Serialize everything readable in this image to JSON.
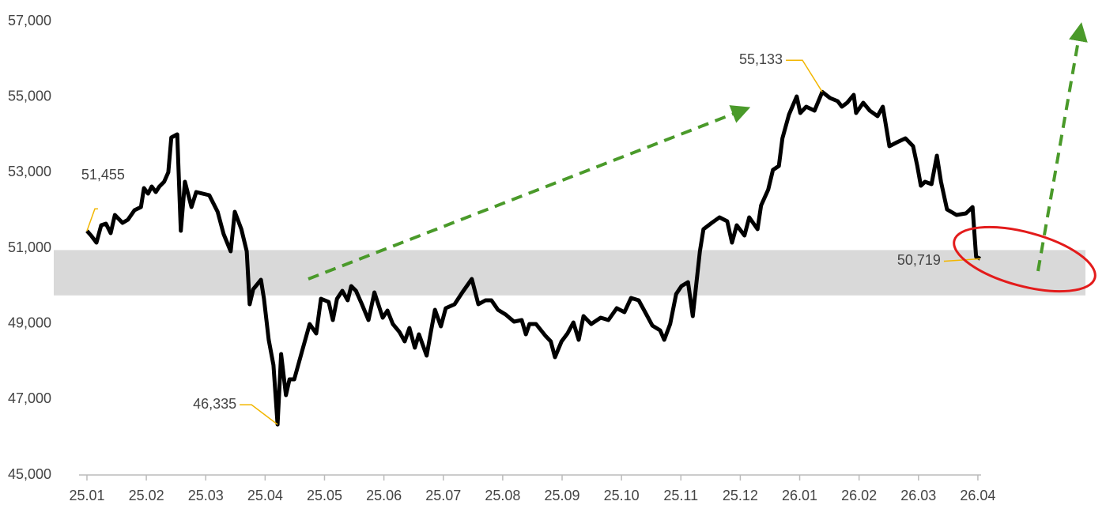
{
  "chart_data": {
    "type": "line",
    "xlim": [
      -0.5,
      17.1
    ],
    "ylim": [
      45000,
      57000
    ],
    "yticks": [
      {
        "value": 45000,
        "label": "45,000"
      },
      {
        "value": 47000,
        "label": "47,000"
      },
      {
        "value": 49000,
        "label": "49,000"
      },
      {
        "value": 51000,
        "label": "51,000"
      },
      {
        "value": 53000,
        "label": "53,000"
      },
      {
        "value": 55000,
        "label": "55,000"
      },
      {
        "value": 57000,
        "label": "57,000"
      }
    ],
    "xticks": [
      {
        "value": 0,
        "label": "25.01"
      },
      {
        "value": 1,
        "label": "25.02"
      },
      {
        "value": 2,
        "label": "25.03"
      },
      {
        "value": 3,
        "label": "25.04"
      },
      {
        "value": 4,
        "label": "25.05"
      },
      {
        "value": 5,
        "label": "25.06"
      },
      {
        "value": 6,
        "label": "25.07"
      },
      {
        "value": 7,
        "label": "25.08"
      },
      {
        "value": 8,
        "label": "25.09"
      },
      {
        "value": 9,
        "label": "25.10"
      },
      {
        "value": 10,
        "label": "25.11"
      },
      {
        "value": 11,
        "label": "25.12"
      },
      {
        "value": 12,
        "label": "26.01"
      },
      {
        "value": 13,
        "label": "26.02"
      },
      {
        "value": 14,
        "label": "26.03"
      },
      {
        "value": 15,
        "label": "26.04"
      }
    ],
    "highlight_band": [
      49750,
      50950
    ],
    "series": [
      {
        "color": "#000000",
        "x": [
          0,
          0.07,
          0.16,
          0.24,
          0.32,
          0.4,
          0.47,
          0.6,
          0.69,
          0.8,
          0.91,
          0.96,
          1.03,
          1.09,
          1.16,
          1.22,
          1.3,
          1.37,
          1.42,
          1.52,
          1.58,
          1.65,
          1.76,
          1.84,
          2.06,
          2.2,
          2.3,
          2.42,
          2.49,
          2.6,
          2.69,
          2.74,
          2.8,
          2.93,
          2.98,
          3.06,
          3.14,
          3.21,
          3.27,
          3.35,
          3.41,
          3.49,
          3.62,
          3.75,
          3.86,
          3.94,
          4.07,
          4.14,
          4.21,
          4.3,
          4.39,
          4.45,
          4.53,
          4.63,
          4.74,
          4.84,
          4.98,
          5.06,
          5.15,
          5.26,
          5.35,
          5.43,
          5.52,
          5.59,
          5.72,
          5.79,
          5.86,
          5.96,
          6.04,
          6.19,
          6.32,
          6.48,
          6.59,
          6.71,
          6.81,
          6.92,
          7.05,
          7.19,
          7.32,
          7.39,
          7.45,
          7.56,
          7.72,
          7.81,
          7.88,
          7.99,
          8.09,
          8.19,
          8.28,
          8.36,
          8.49,
          8.65,
          8.78,
          8.92,
          9.05,
          9.16,
          9.29,
          9.42,
          9.52,
          9.65,
          9.72,
          9.82,
          9.92,
          10.01,
          10.12,
          10.2,
          10.32,
          10.38,
          10.52,
          10.65,
          10.78,
          10.86,
          10.94,
          11.07,
          11.15,
          11.29,
          11.35,
          11.47,
          11.55,
          11.65,
          11.71,
          11.82,
          11.95,
          12.01,
          12.11,
          12.25,
          12.38,
          12.51,
          12.64,
          12.71,
          12.8,
          12.91,
          12.95,
          13.07,
          13.18,
          13.31,
          13.4,
          13.51,
          13.64,
          13.78,
          13.91,
          13.98,
          14.04,
          14.11,
          14.22,
          14.31,
          14.38,
          14.48,
          14.64,
          14.8,
          14.91,
          14.97,
          15.04
        ],
        "values": [
          51455,
          51334,
          51146,
          51606,
          51648,
          51397,
          51878,
          51669,
          51752,
          52003,
          52087,
          52588,
          52442,
          52630,
          52484,
          52630,
          52756,
          53006,
          53926,
          54010,
          51459,
          52756,
          52087,
          52484,
          52400,
          51961,
          51376,
          50916,
          51961,
          51501,
          50916,
          49515,
          49912,
          50163,
          49662,
          48574,
          47905,
          46335,
          48198,
          47111,
          47529,
          47529,
          48261,
          48993,
          48742,
          49662,
          49578,
          49097,
          49662,
          49871,
          49620,
          49996,
          49871,
          49515,
          49097,
          49829,
          49160,
          49348,
          48993,
          48783,
          48533,
          48888,
          48365,
          48721,
          48156,
          48783,
          49369,
          48930,
          49411,
          49515,
          49829,
          50184,
          49515,
          49620,
          49620,
          49369,
          49243,
          49055,
          49097,
          48721,
          48993,
          48993,
          48679,
          48533,
          48114,
          48533,
          48742,
          49035,
          48574,
          49202,
          48993,
          49160,
          49097,
          49411,
          49306,
          49683,
          49620,
          49244,
          48951,
          48826,
          48574,
          48993,
          49787,
          49996,
          50101,
          49202,
          50916,
          51501,
          51669,
          51815,
          51710,
          51146,
          51606,
          51334,
          51815,
          51501,
          52128,
          52547,
          53069,
          53174,
          53905,
          54533,
          55013,
          54574,
          54742,
          54637,
          55133,
          54972,
          54888,
          54742,
          54846,
          55055,
          54574,
          54846,
          54637,
          54491,
          54742,
          53696,
          53801,
          53905,
          53696,
          53174,
          52651,
          52756,
          52693,
          53446,
          52756,
          52024,
          51878,
          51919,
          52087,
          50770,
          50719
        ]
      }
    ],
    "annotations": [
      {
        "x": 0,
        "y": 51455,
        "label": "51,455"
      },
      {
        "x": 3.21,
        "y": 46335,
        "label": "46,335"
      },
      {
        "x": 12.38,
        "y": 55133,
        "label": "55,133"
      },
      {
        "x": 15.04,
        "y": 50719,
        "label": "50,719"
      }
    ]
  }
}
